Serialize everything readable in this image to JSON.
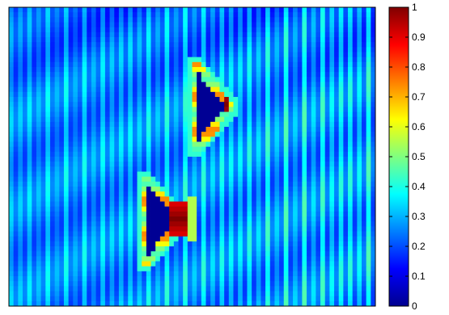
{
  "chart_data": {
    "type": "heatmap",
    "colormap": "jet",
    "grid": false,
    "x_ticks": false,
    "y_ticks": false,
    "colorbar": {
      "placement": "right",
      "range": [
        0,
        1
      ],
      "ticks": [
        "0",
        "0.1",
        "0.2",
        "0.3",
        "0.4",
        "0.5",
        "0.6",
        "0.7",
        "0.8",
        "0.9",
        "1"
      ]
    },
    "grid_size": {
      "columns": 80,
      "rows": 60
    },
    "field": {
      "background_level": 0.22,
      "stripe_period_columns": 2,
      "stripe_peak_level": 0.42,
      "upper_band_level": 0.18,
      "right_side_stripes_stronger": true
    },
    "objects": [
      {
        "name": "",
        "shape": "triangle",
        "vertices": [
          [
            40.5,
            11.5
          ],
          [
            40.5,
            28.5
          ],
          [
            48.5,
            20
          ]
        ],
        "interior_level": 0.02,
        "edge_level": 0.6,
        "hot_spot": {
          "cell": [
            47.5,
            19.5
          ],
          "level": 1.0
        }
      },
      {
        "name": "",
        "shape": "triangle",
        "vertices": [
          [
            29.5,
            34.5
          ],
          [
            29.5,
            51.5
          ],
          [
            38,
            42.5
          ]
        ],
        "interior_level": 0.02,
        "edge_level": 0.6,
        "hot_spot": {
          "cell": [
            37,
            42.5
          ],
          "level": 1.0,
          "extent": 2
        },
        "trailing_glow": {
          "column": 40,
          "level": 0.55
        }
      }
    ]
  }
}
